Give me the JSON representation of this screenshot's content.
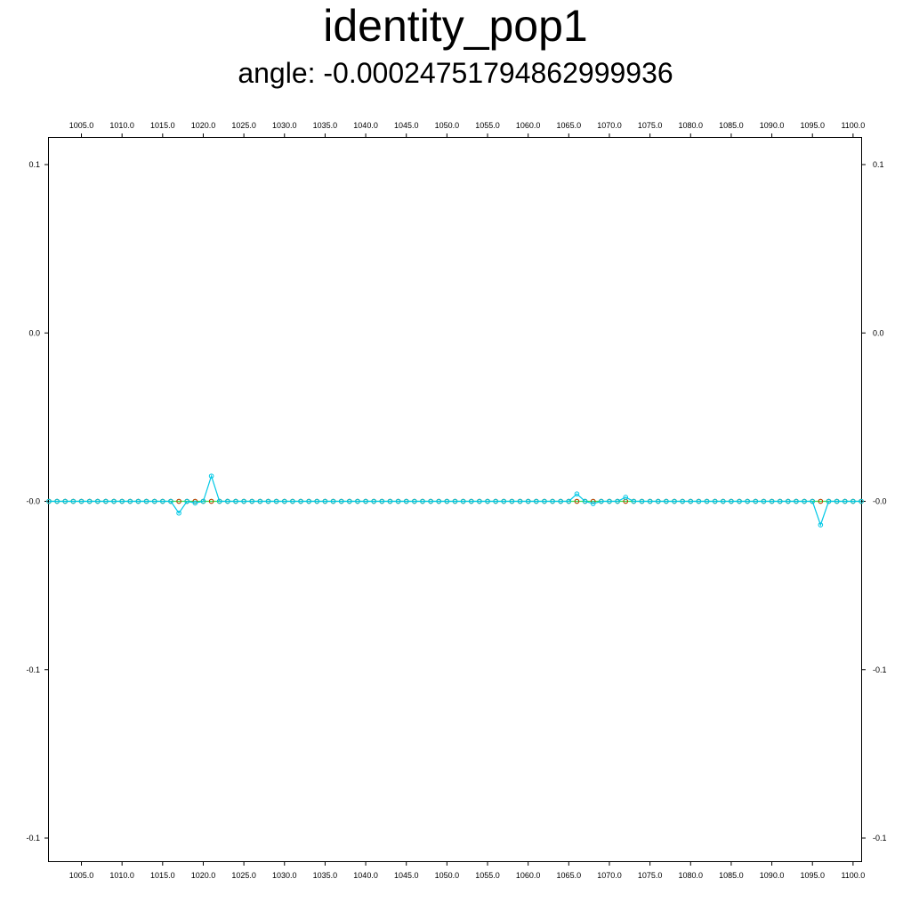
{
  "chart_data": {
    "type": "line",
    "title": "identity_pop1",
    "subtitle": "angle: -0.00024751794862999936",
    "xlim": [
      1001,
      1101
    ],
    "ylim": [
      -0.109,
      0.1
    ],
    "x_ticks": [
      1005,
      1010,
      1015,
      1020,
      1025,
      1030,
      1035,
      1040,
      1045,
      1050,
      1055,
      1060,
      1065,
      1070,
      1075,
      1080,
      1085,
      1090,
      1095,
      1100
    ],
    "x_tick_labels": [
      "1005.0",
      "1010.0",
      "1015.0",
      "1020.0",
      "1025.0",
      "1030.0",
      "1035.0",
      "1040.0",
      "1045.0",
      "1050.0",
      "1055.0",
      "1060.0",
      "1065.0",
      "1070.0",
      "1075.0",
      "1080.0",
      "1085.0",
      "1090.0",
      "1095.0",
      "1100.0"
    ],
    "y_ticks": [
      0.1,
      0.05,
      0.0,
      -0.05,
      -0.1
    ],
    "y_tick_labels": [
      "0.1",
      "0.0",
      "-0.0",
      "-0.1",
      "-0.1"
    ],
    "grid": false,
    "series": [
      {
        "color": "#32e650",
        "line_color": "#32e650",
        "x_start": 1001,
        "x_end": 1101,
        "x_step": 1,
        "constant_y": 0.0
      },
      {
        "color": "#cc3300",
        "x_start": 1001,
        "x_end": 1101,
        "x_step": 1,
        "constant_y": 0.0,
        "overrides": [
          {
            "x": 1017,
            "y": 0.0
          },
          {
            "x": 1021,
            "y": 0.0
          },
          {
            "x": 1066,
            "y": 0.0
          },
          {
            "x": 1068,
            "y": 0.0
          },
          {
            "x": 1072,
            "y": 0.0
          },
          {
            "x": 1096,
            "y": 0.0
          }
        ]
      },
      {
        "color": "#00c8e6",
        "line_color": "#00c8e6",
        "x_start": 1001,
        "x_end": 1101,
        "x_step": 1,
        "constant_y": 0.0,
        "overrides": [
          {
            "x": 1017,
            "y": -0.0035
          },
          {
            "x": 1019,
            "y": -0.0005
          },
          {
            "x": 1021,
            "y": 0.0075
          },
          {
            "x": 1066,
            "y": 0.0022
          },
          {
            "x": 1068,
            "y": -0.0007
          },
          {
            "x": 1072,
            "y": 0.0012
          },
          {
            "x": 1096,
            "y": -0.007
          }
        ]
      }
    ]
  }
}
